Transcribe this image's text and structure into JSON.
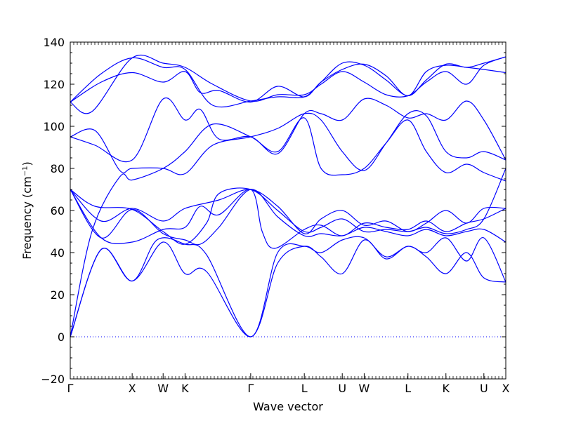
{
  "chart_data": {
    "type": "line",
    "title": "",
    "xlabel": "Wave vector",
    "ylabel": "Frequency (cm⁻¹)",
    "ylim": [
      -20,
      140
    ],
    "yticks": [
      -20,
      0,
      20,
      40,
      60,
      80,
      100,
      120,
      140
    ],
    "grid": false,
    "line_color": "#0000ff",
    "zero_line": {
      "y": 0,
      "style": "dotted",
      "color": "#0000ff"
    },
    "path_points": [
      {
        "label": "Γ",
        "x": 0.0
      },
      {
        "label": "X",
        "x": 1.0
      },
      {
        "label": "W",
        "x": 1.5
      },
      {
        "label": "K",
        "x": 1.854
      },
      {
        "label": "Γ",
        "x": 2.914
      },
      {
        "label": "L",
        "x": 3.78
      },
      {
        "label": "U",
        "x": 4.393
      },
      {
        "label": "W",
        "x": 4.747
      },
      {
        "label": "L",
        "x": 5.454
      },
      {
        "label": "K",
        "x": 6.067
      },
      {
        "label": "U",
        "x": 6.68
      },
      {
        "label": "X",
        "x": 7.034
      }
    ],
    "series": [
      {
        "values": [
          [
            0.0,
            0
          ],
          [
            0.5,
            41.5
          ],
          [
            1.0,
            26.5
          ],
          [
            1.5,
            45
          ],
          [
            1.854,
            30
          ],
          [
            2.2,
            31
          ],
          [
            2.914,
            0
          ],
          [
            3.35,
            35
          ],
          [
            3.78,
            43
          ],
          [
            4.05,
            38
          ],
          [
            4.393,
            30
          ],
          [
            4.747,
            46
          ],
          [
            5.1,
            37
          ],
          [
            5.454,
            43
          ],
          [
            5.75,
            38
          ],
          [
            6.067,
            30
          ],
          [
            6.4,
            40
          ],
          [
            6.68,
            28
          ],
          [
            7.034,
            26
          ]
        ]
      },
      {
        "values": [
          [
            0.0,
            0
          ],
          [
            0.5,
            41.5
          ],
          [
            1.0,
            26.5
          ],
          [
            1.4,
            46
          ],
          [
            1.854,
            44
          ],
          [
            2.2,
            39
          ],
          [
            2.914,
            0
          ],
          [
            3.35,
            40
          ],
          [
            3.78,
            43
          ],
          [
            4.05,
            40
          ],
          [
            4.393,
            46
          ],
          [
            4.747,
            47
          ],
          [
            5.1,
            38
          ],
          [
            5.454,
            43
          ],
          [
            5.75,
            40
          ],
          [
            6.067,
            47
          ],
          [
            6.4,
            36
          ],
          [
            6.68,
            47
          ],
          [
            7.034,
            26
          ]
        ]
      },
      {
        "values": [
          [
            0.0,
            0
          ],
          [
            0.35,
            50
          ],
          [
            0.8,
            76
          ],
          [
            1.0,
            74.5
          ],
          [
            1.5,
            80
          ],
          [
            1.854,
            88
          ],
          [
            2.3,
            101
          ],
          [
            2.914,
            95
          ],
          [
            3.35,
            88
          ],
          [
            3.78,
            104
          ],
          [
            4.05,
            80
          ],
          [
            4.393,
            77
          ],
          [
            4.747,
            80
          ],
          [
            5.1,
            92
          ],
          [
            5.454,
            103
          ],
          [
            5.75,
            88
          ],
          [
            6.067,
            78
          ],
          [
            6.4,
            82
          ],
          [
            6.68,
            78
          ],
          [
            7.034,
            74
          ]
        ]
      },
      {
        "values": [
          [
            0.0,
            70
          ],
          [
            0.5,
            47
          ],
          [
            1.0,
            60.5
          ],
          [
            1.5,
            49
          ],
          [
            1.854,
            46
          ],
          [
            2.1,
            44
          ],
          [
            2.4,
            52
          ],
          [
            2.914,
            70
          ],
          [
            3.35,
            57
          ],
          [
            3.78,
            48
          ],
          [
            4.05,
            49
          ],
          [
            4.393,
            48
          ],
          [
            4.747,
            52
          ],
          [
            5.1,
            50
          ],
          [
            5.454,
            48
          ],
          [
            5.75,
            51
          ],
          [
            6.067,
            48
          ],
          [
            6.4,
            50
          ],
          [
            6.68,
            51
          ],
          [
            7.034,
            45
          ]
        ]
      },
      {
        "values": [
          [
            0.0,
            70
          ],
          [
            0.5,
            47
          ],
          [
            1.0,
            45
          ],
          [
            1.5,
            51
          ],
          [
            1.854,
            52
          ],
          [
            2.1,
            62
          ],
          [
            2.4,
            58
          ],
          [
            2.914,
            70
          ],
          [
            3.1,
            50
          ],
          [
            3.3,
            42
          ],
          [
            3.78,
            51
          ],
          [
            4.05,
            53
          ],
          [
            4.393,
            48
          ],
          [
            4.747,
            54
          ],
          [
            5.1,
            52
          ],
          [
            5.454,
            51
          ],
          [
            5.75,
            55
          ],
          [
            6.067,
            50
          ],
          [
            6.4,
            54
          ],
          [
            6.68,
            56
          ],
          [
            7.034,
            61
          ]
        ]
      },
      {
        "values": [
          [
            0.0,
            70
          ],
          [
            0.5,
            55
          ],
          [
            1.0,
            61
          ],
          [
            1.5,
            55
          ],
          [
            1.854,
            61
          ],
          [
            2.4,
            65
          ],
          [
            2.914,
            70
          ],
          [
            3.35,
            62
          ],
          [
            3.78,
            49
          ],
          [
            4.05,
            56
          ],
          [
            4.393,
            60
          ],
          [
            4.747,
            53
          ],
          [
            5.1,
            55
          ],
          [
            5.454,
            50
          ],
          [
            5.75,
            54
          ],
          [
            6.067,
            60
          ],
          [
            6.4,
            54
          ],
          [
            6.68,
            61
          ],
          [
            7.034,
            61
          ]
        ]
      },
      {
        "values": [
          [
            0.0,
            70
          ],
          [
            0.4,
            62
          ],
          [
            1.0,
            60.5
          ],
          [
            1.5,
            50
          ],
          [
            1.854,
            44
          ],
          [
            2.2,
            54
          ],
          [
            2.4,
            68
          ],
          [
            2.914,
            70
          ],
          [
            3.35,
            60
          ],
          [
            3.78,
            50
          ],
          [
            4.05,
            52
          ],
          [
            4.393,
            56
          ],
          [
            4.747,
            50
          ],
          [
            5.1,
            51
          ],
          [
            5.454,
            50
          ],
          [
            5.75,
            52
          ],
          [
            6.067,
            49
          ],
          [
            6.4,
            51
          ],
          [
            6.68,
            56
          ],
          [
            7.034,
            80
          ]
        ]
      },
      {
        "values": [
          [
            0.0,
            95
          ],
          [
            0.4,
            98
          ],
          [
            0.8,
            79
          ],
          [
            1.0,
            80
          ],
          [
            1.5,
            80
          ],
          [
            1.854,
            77.5
          ],
          [
            2.3,
            91
          ],
          [
            2.914,
            95
          ],
          [
            3.35,
            99
          ],
          [
            3.78,
            106
          ],
          [
            4.05,
            103
          ],
          [
            4.393,
            88
          ],
          [
            4.747,
            79
          ],
          [
            5.1,
            92
          ],
          [
            5.454,
            106
          ],
          [
            5.75,
            105
          ],
          [
            6.067,
            88
          ],
          [
            6.4,
            85
          ],
          [
            6.68,
            88
          ],
          [
            7.034,
            84
          ]
        ]
      },
      {
        "values": [
          [
            0.0,
            95
          ],
          [
            0.4,
            91
          ],
          [
            1.0,
            84
          ],
          [
            1.5,
            113
          ],
          [
            1.854,
            103
          ],
          [
            2.1,
            108
          ],
          [
            2.4,
            94
          ],
          [
            2.914,
            95
          ],
          [
            3.35,
            87
          ],
          [
            3.78,
            106
          ],
          [
            4.05,
            106
          ],
          [
            4.393,
            103
          ],
          [
            4.747,
            113
          ],
          [
            5.1,
            110
          ],
          [
            5.454,
            104
          ],
          [
            5.75,
            106
          ],
          [
            6.067,
            103
          ],
          [
            6.4,
            112
          ],
          [
            6.68,
            103
          ],
          [
            7.034,
            84
          ]
        ]
      },
      {
        "values": [
          [
            0.0,
            111.5
          ],
          [
            0.35,
            107
          ],
          [
            1.0,
            132.5
          ],
          [
            1.5,
            130
          ],
          [
            1.854,
            128
          ],
          [
            2.3,
            120
          ],
          [
            2.914,
            112
          ],
          [
            3.35,
            115
          ],
          [
            3.78,
            115
          ],
          [
            4.05,
            120
          ],
          [
            4.393,
            126
          ],
          [
            4.747,
            121
          ],
          [
            5.1,
            115
          ],
          [
            5.454,
            114.5
          ],
          [
            5.75,
            121
          ],
          [
            6.067,
            126
          ],
          [
            6.4,
            120
          ],
          [
            6.68,
            129
          ],
          [
            7.034,
            133
          ]
        ]
      },
      {
        "values": [
          [
            0.0,
            111.5
          ],
          [
            0.5,
            121
          ],
          [
            1.0,
            125.5
          ],
          [
            1.5,
            121
          ],
          [
            1.854,
            126
          ],
          [
            2.1,
            116
          ],
          [
            2.4,
            117
          ],
          [
            2.914,
            111.5
          ],
          [
            3.35,
            119
          ],
          [
            3.78,
            114
          ],
          [
            4.05,
            121
          ],
          [
            4.393,
            127
          ],
          [
            4.747,
            129.5
          ],
          [
            5.1,
            124
          ],
          [
            5.454,
            114.5
          ],
          [
            5.75,
            126
          ],
          [
            6.067,
            129
          ],
          [
            6.4,
            128
          ],
          [
            6.68,
            127
          ],
          [
            7.034,
            125.5
          ]
        ]
      },
      {
        "values": [
          [
            0.0,
            111.5
          ],
          [
            0.5,
            125
          ],
          [
            1.0,
            132.5
          ],
          [
            1.5,
            128
          ],
          [
            1.854,
            127
          ],
          [
            2.3,
            110
          ],
          [
            2.914,
            112
          ],
          [
            3.35,
            114
          ],
          [
            3.78,
            114
          ],
          [
            4.05,
            121
          ],
          [
            4.393,
            130
          ],
          [
            4.747,
            129
          ],
          [
            5.1,
            122
          ],
          [
            5.454,
            114.5
          ],
          [
            5.75,
            122
          ],
          [
            6.067,
            129.5
          ],
          [
            6.4,
            128
          ],
          [
            6.68,
            130
          ],
          [
            7.034,
            133
          ]
        ]
      }
    ]
  }
}
